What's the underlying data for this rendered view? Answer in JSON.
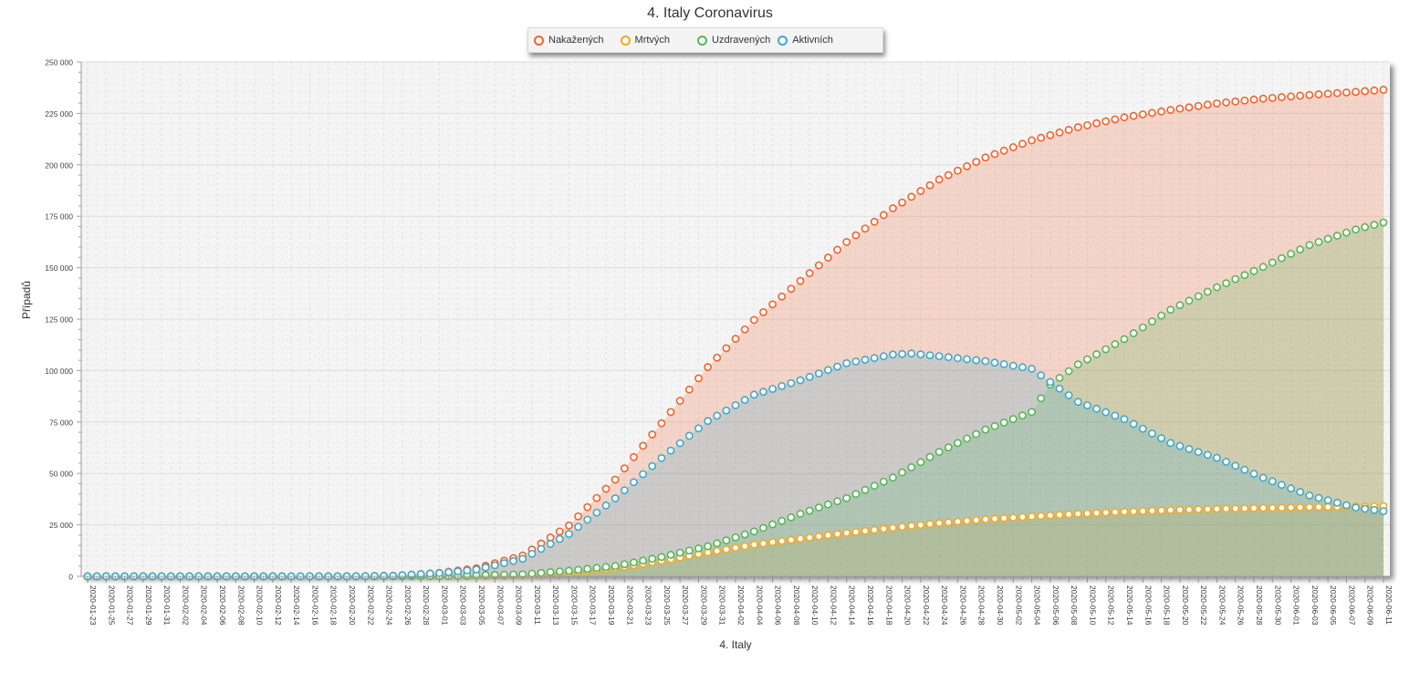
{
  "chart_data": {
    "type": "area",
    "title": "4. Italy Coronavirus",
    "xlabel": "4. Italy",
    "ylabel": "Případů",
    "ylim": [
      0,
      250000
    ],
    "yticks": [
      0,
      25000,
      50000,
      75000,
      100000,
      125000,
      150000,
      175000,
      200000,
      225000,
      250000
    ],
    "ytick_labels": [
      "0",
      "25 000",
      "50 000",
      "75 000",
      "100 000",
      "125 000",
      "150 000",
      "175 000",
      "200 000",
      "225 000",
      "250 000"
    ],
    "x_start": "2020-01-23",
    "x_end": "2020-06-11",
    "x_tick_labels": [
      "2020-01-23",
      "2020-01-25",
      "2020-01-27",
      "2020-01-29",
      "2020-01-31",
      "2020-02-02",
      "2020-02-04",
      "2020-02-06",
      "2020-02-08",
      "2020-02-10",
      "2020-02-12",
      "2020-02-14",
      "2020-02-16",
      "2020-02-18",
      "2020-02-20",
      "2020-02-22",
      "2020-02-24",
      "2020-02-26",
      "2020-02-28",
      "2020-03-01",
      "2020-03-03",
      "2020-03-05",
      "2020-03-07",
      "2020-03-09",
      "2020-03-11",
      "2020-03-13",
      "2020-03-15",
      "2020-03-17",
      "2020-03-19",
      "2020-03-21",
      "2020-03-23",
      "2020-03-25",
      "2020-03-27",
      "2020-03-29",
      "2020-03-31",
      "2020-04-02",
      "2020-04-04",
      "2020-04-06",
      "2020-04-08",
      "2020-04-10",
      "2020-04-12",
      "2020-04-14",
      "2020-04-16",
      "2020-04-18",
      "2020-04-20",
      "2020-04-22",
      "2020-04-24",
      "2020-04-26",
      "2020-04-28",
      "2020-04-30",
      "2020-05-02",
      "2020-05-04",
      "2020-05-06",
      "2020-05-08",
      "2020-05-10",
      "2020-05-12",
      "2020-05-14",
      "2020-05-16",
      "2020-05-18",
      "2020-05-20",
      "2020-05-22",
      "2020-05-24",
      "2020-05-26",
      "2020-05-28",
      "2020-05-30",
      "2020-06-01",
      "2020-06-03",
      "2020-06-05",
      "2020-06-07",
      "2020-06-09",
      "2020-06-11"
    ],
    "grid": true,
    "legend": "top-center",
    "series": [
      {
        "name": "Nakažených",
        "color": "#f3622d",
        "keypoints": [
          [
            "2020-01-23",
            0
          ],
          [
            "2020-02-20",
            3
          ],
          [
            "2020-02-25",
            300
          ],
          [
            "2020-03-01",
            1700
          ],
          [
            "2020-03-05",
            3900
          ],
          [
            "2020-03-10",
            10100
          ],
          [
            "2020-03-15",
            24700
          ],
          [
            "2020-03-20",
            47000
          ],
          [
            "2020-03-25",
            74400
          ],
          [
            "2020-03-30",
            101700
          ],
          [
            "2020-04-04",
            124600
          ],
          [
            "2020-04-09",
            143600
          ],
          [
            "2020-04-14",
            162500
          ],
          [
            "2020-04-19",
            178900
          ],
          [
            "2020-04-24",
            192900
          ],
          [
            "2020-04-29",
            203600
          ],
          [
            "2020-05-04",
            211900
          ],
          [
            "2020-05-09",
            218300
          ],
          [
            "2020-05-14",
            223100
          ],
          [
            "2020-05-19",
            226700
          ],
          [
            "2020-05-24",
            229900
          ],
          [
            "2020-05-29",
            232200
          ],
          [
            "2020-06-03",
            234000
          ],
          [
            "2020-06-08",
            235500
          ],
          [
            "2020-06-11",
            236500
          ]
        ]
      },
      {
        "name": "Mrtvých",
        "color": "#fba71b",
        "keypoints": [
          [
            "2020-01-23",
            0
          ],
          [
            "2020-02-22",
            0
          ],
          [
            "2020-03-01",
            40
          ],
          [
            "2020-03-05",
            150
          ],
          [
            "2020-03-10",
            630
          ],
          [
            "2020-03-15",
            1800
          ],
          [
            "2020-03-20",
            4000
          ],
          [
            "2020-03-25",
            7500
          ],
          [
            "2020-03-30",
            11600
          ],
          [
            "2020-04-04",
            15400
          ],
          [
            "2020-04-09",
            18300
          ],
          [
            "2020-04-14",
            21100
          ],
          [
            "2020-04-19",
            23600
          ],
          [
            "2020-04-24",
            25900
          ],
          [
            "2020-04-29",
            27700
          ],
          [
            "2020-05-04",
            29100
          ],
          [
            "2020-05-09",
            30400
          ],
          [
            "2020-05-14",
            31400
          ],
          [
            "2020-05-19",
            32200
          ],
          [
            "2020-05-24",
            32800
          ],
          [
            "2020-05-29",
            33200
          ],
          [
            "2020-06-03",
            33600
          ],
          [
            "2020-06-08",
            33900
          ],
          [
            "2020-06-11",
            34100
          ]
        ]
      },
      {
        "name": "Uzdravených",
        "color": "#57b757",
        "keypoints": [
          [
            "2020-01-23",
            0
          ],
          [
            "2020-02-22",
            0
          ],
          [
            "2020-03-01",
            80
          ],
          [
            "2020-03-05",
            500
          ],
          [
            "2020-03-10",
            1000
          ],
          [
            "2020-03-15",
            2700
          ],
          [
            "2020-03-20",
            5000
          ],
          [
            "2020-03-25",
            9400
          ],
          [
            "2020-03-30",
            14600
          ],
          [
            "2020-04-04",
            21800
          ],
          [
            "2020-04-09",
            30400
          ],
          [
            "2020-04-14",
            38000
          ],
          [
            "2020-04-19",
            48000
          ],
          [
            "2020-04-24",
            60500
          ],
          [
            "2020-04-29",
            71300
          ],
          [
            "2020-05-04",
            79900
          ],
          [
            "2020-05-06",
            93200
          ],
          [
            "2020-05-09",
            103000
          ],
          [
            "2020-05-14",
            115300
          ],
          [
            "2020-05-19",
            129600
          ],
          [
            "2020-05-24",
            140500
          ],
          [
            "2020-05-29",
            150400
          ],
          [
            "2020-06-03",
            161000
          ],
          [
            "2020-06-08",
            168600
          ],
          [
            "2020-06-11",
            172000
          ]
        ]
      },
      {
        "name": "Aktivních",
        "color": "#41a9c9",
        "keypoints": [
          [
            "2020-01-23",
            0
          ],
          [
            "2020-02-20",
            3
          ],
          [
            "2020-02-25",
            280
          ],
          [
            "2020-03-01",
            1580
          ],
          [
            "2020-03-05",
            3300
          ],
          [
            "2020-03-10",
            8500
          ],
          [
            "2020-03-15",
            20600
          ],
          [
            "2020-03-20",
            37900
          ],
          [
            "2020-03-25",
            57500
          ],
          [
            "2020-03-30",
            75500
          ],
          [
            "2020-04-04",
            88300
          ],
          [
            "2020-04-09",
            95300
          ],
          [
            "2020-04-14",
            103600
          ],
          [
            "2020-04-19",
            107800
          ],
          [
            "2020-04-21",
            108300
          ],
          [
            "2020-04-24",
            107000
          ],
          [
            "2020-04-29",
            104600
          ],
          [
            "2020-05-04",
            100900
          ],
          [
            "2020-05-09",
            84800
          ],
          [
            "2020-05-14",
            76400
          ],
          [
            "2020-05-19",
            64800
          ],
          [
            "2020-05-24",
            57600
          ],
          [
            "2020-05-29",
            47900
          ],
          [
            "2020-06-03",
            39300
          ],
          [
            "2020-06-08",
            33400
          ],
          [
            "2020-06-11",
            31700
          ]
        ]
      }
    ]
  }
}
